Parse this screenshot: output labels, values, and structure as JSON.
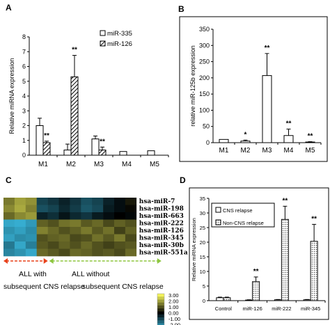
{
  "panels": {
    "A": "A",
    "B": "B",
    "C": "C",
    "D": "D"
  },
  "chart_data": [
    {
      "panel": "A",
      "type": "bar",
      "ylabel": "Relative miRNA expression",
      "ylim": [
        0,
        8
      ],
      "yticks": [
        0,
        1,
        2,
        3,
        4,
        5,
        6,
        7,
        8
      ],
      "categories": [
        "M1",
        "M2",
        "M3",
        "M4",
        "M5"
      ],
      "series": [
        {
          "name": "miR-335",
          "pattern": "white",
          "values": [
            2.0,
            0.35,
            1.1,
            0.25,
            0.3
          ],
          "errors": [
            0.5,
            0.4,
            0.2,
            0.0,
            0.0
          ]
        },
        {
          "name": "miR-126",
          "pattern": "hatched",
          "values": [
            0.85,
            5.3,
            0.35,
            null,
            null
          ],
          "errors": [
            0.1,
            1.45,
            0.2,
            0.0,
            0.0
          ]
        }
      ],
      "annotations": [
        {
          "category": "M1",
          "series": 1,
          "text": "**"
        },
        {
          "category": "M2",
          "series": 1,
          "text": "**"
        },
        {
          "category": "M3",
          "series": 1,
          "text": "**"
        }
      ],
      "legend_position": "top-right",
      "grid": false
    },
    {
      "panel": "B",
      "type": "bar",
      "ylabel": "relative miR-125b expression",
      "ylim": [
        0,
        350
      ],
      "yticks": [
        0,
        50,
        100,
        150,
        200,
        250,
        300,
        350
      ],
      "categories": [
        "M1",
        "M2",
        "M3",
        "M4",
        "M5"
      ],
      "series": [
        {
          "name": "",
          "pattern": "white",
          "values": [
            10,
            5,
            207,
            22,
            2
          ],
          "errors": [
            0,
            3,
            68,
            20,
            1
          ]
        }
      ],
      "annotations": [
        {
          "category": "M2",
          "text": "*"
        },
        {
          "category": "M3",
          "text": "**"
        },
        {
          "category": "M4",
          "text": "**"
        },
        {
          "category": "M5",
          "text": "**"
        }
      ],
      "grid": false
    },
    {
      "panel": "C",
      "type": "heatmap",
      "rows": [
        "hsa-miR-7",
        "hsa-miR-198",
        "hsa-miR-663",
        "hsa-miR-222",
        "hsa-miR-126",
        "hsa-miR-345",
        "hsa-miR-30b",
        "hsa-miR-551a"
      ],
      "groups": [
        {
          "line1": "ALL with",
          "line2": "subsequent CNS relapse",
          "columns": 3
        },
        {
          "line1": "ALL without",
          "line2": "subsequent CNS relapse",
          "columns": 9
        }
      ],
      "values": [
        [
          1.5,
          2.0,
          1.8,
          -1.0,
          -0.8,
          -0.5,
          -0.8,
          -1.2,
          -1.0,
          -0.5,
          -0.2,
          0.3
        ],
        [
          1.7,
          2.1,
          1.6,
          -1.2,
          -1.0,
          -0.6,
          -0.9,
          -1.3,
          -1.1,
          -0.4,
          -0.2,
          0.1
        ],
        [
          1.3,
          1.7,
          1.9,
          -0.5,
          -0.7,
          -0.3,
          -0.6,
          -0.8,
          -0.4,
          -0.2,
          0.0,
          -0.1
        ],
        [
          -2.5,
          -2.6,
          -2.3,
          1.2,
          1.0,
          1.4,
          1.5,
          1.1,
          1.3,
          0.9,
          1.2,
          1.0
        ],
        [
          -2.2,
          -2.4,
          -2.1,
          1.6,
          1.3,
          1.0,
          1.2,
          1.5,
          1.1,
          1.4,
          0.8,
          1.2
        ],
        [
          -2.4,
          -2.1,
          -2.2,
          1.0,
          1.2,
          1.3,
          0.9,
          1.0,
          1.4,
          1.1,
          1.5,
          0.9
        ],
        [
          -1.8,
          -2.5,
          -1.9,
          1.1,
          0.9,
          1.2,
          1.0,
          1.3,
          1.0,
          0.8,
          1.0,
          1.1
        ],
        [
          -2.0,
          -2.2,
          -2.5,
          1.3,
          1.1,
          0.9,
          1.3,
          1.2,
          1.0,
          1.1,
          0.9,
          1.3
        ]
      ],
      "colorbar": {
        "ticks": [
          "3.00",
          "2.00",
          "1.00",
          "0.00",
          "-1.00",
          "-2.00",
          "-3.00"
        ],
        "range": [
          -3,
          3
        ],
        "colors": {
          "high": "#f2f25a",
          "mid": "#000000",
          "low": "#3ec8f0"
        }
      },
      "arrow_colors": {
        "with": "#e8421c",
        "without": "#8dc63f"
      }
    },
    {
      "panel": "D",
      "type": "bar",
      "ylabel": "Relative miRNA expression",
      "ylim": [
        0,
        35
      ],
      "yticks": [
        0,
        5,
        10,
        15,
        20,
        25,
        30,
        35
      ],
      "categories": [
        "Control",
        "miR-126",
        "miR-222",
        "miR-345"
      ],
      "series": [
        {
          "name": "CNS relapse",
          "pattern": "white",
          "values": [
            1.0,
            0.2,
            0.3,
            0.3
          ],
          "errors": [
            0.2,
            0.1,
            0.1,
            0.1
          ]
        },
        {
          "name": "Non-CNS relapse",
          "pattern": "dotted",
          "values": [
            1.0,
            6.5,
            27.8,
            20.3
          ],
          "errors": [
            0.2,
            1.6,
            4.5,
            5.8
          ]
        }
      ],
      "annotations": [
        {
          "category": "miR-126",
          "series": 1,
          "text": "**"
        },
        {
          "category": "miR-222",
          "series": 1,
          "text": "**"
        },
        {
          "category": "miR-345",
          "series": 1,
          "text": "**"
        }
      ],
      "legend_position": "top-left",
      "grid": false
    }
  ]
}
